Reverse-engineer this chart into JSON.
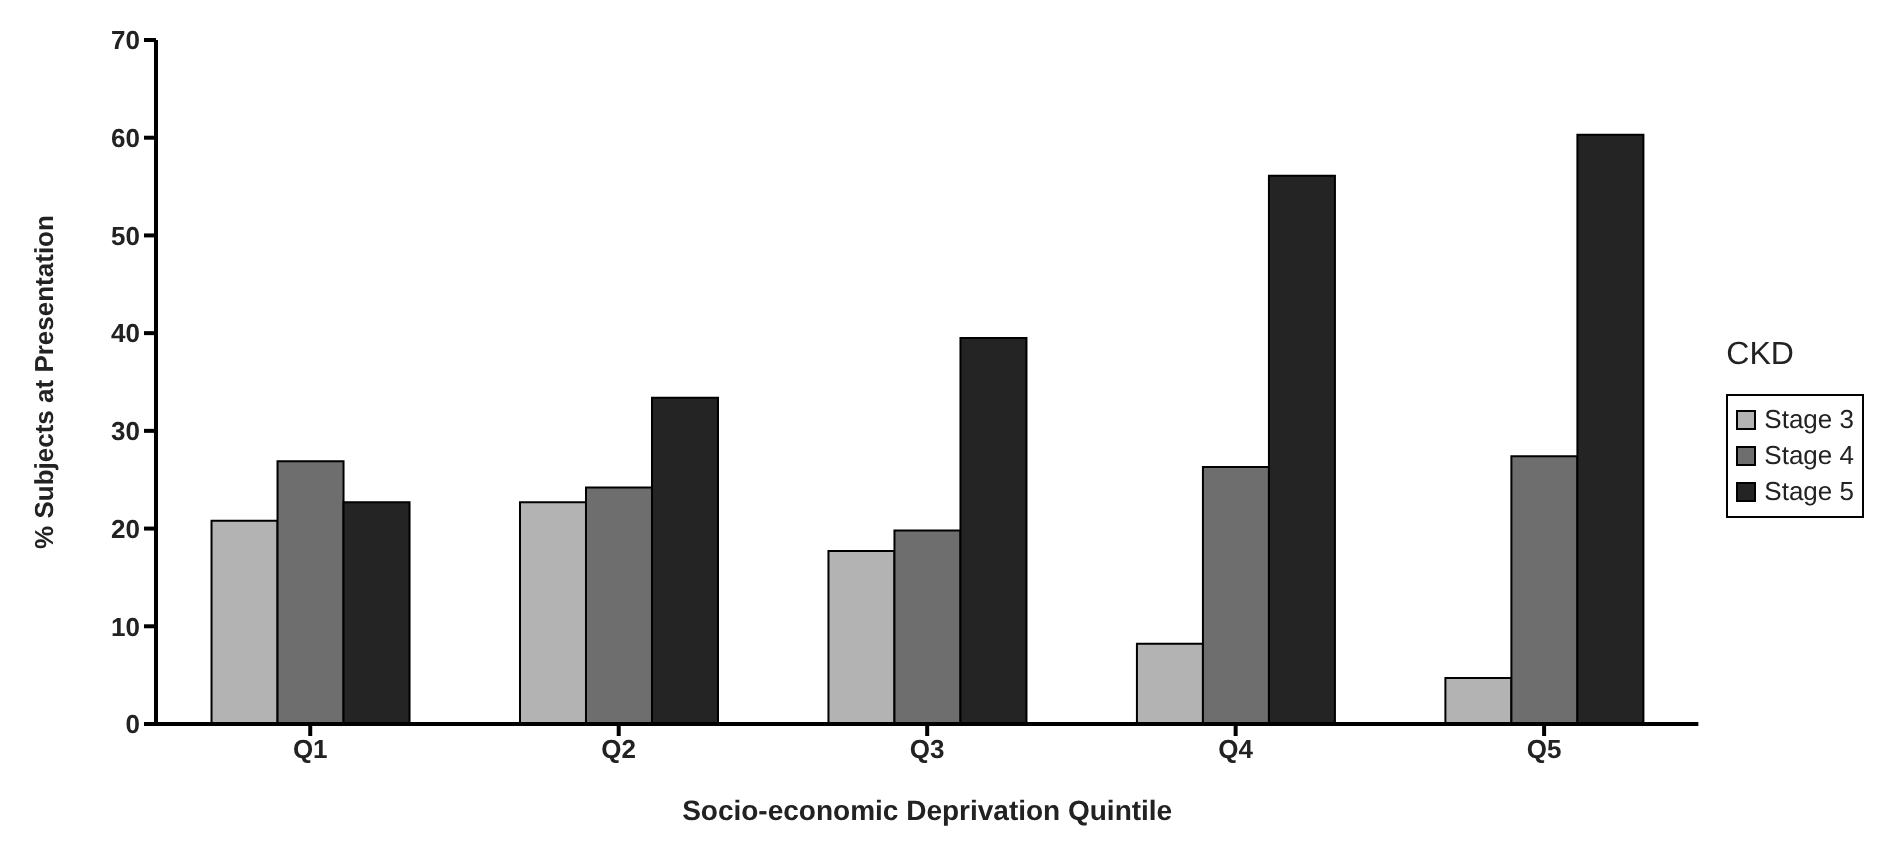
{
  "chart_data": {
    "type": "bar",
    "xlabel": "Socio-economic Deprivation Quintile",
    "ylabel": "% Subjects at Presentation",
    "legend_title": "CKD",
    "categories": [
      "Q1",
      "Q2",
      "Q3",
      "Q4",
      "Q5"
    ],
    "series": [
      {
        "name": "Stage 3",
        "color": "#b3b3b3",
        "values": [
          20.8,
          22.7,
          17.7,
          8.2,
          4.7
        ]
      },
      {
        "name": "Stage 4",
        "color": "#6e6e6e",
        "values": [
          26.9,
          24.2,
          19.8,
          26.3,
          27.4
        ]
      },
      {
        "name": "Stage 5",
        "color": "#242424",
        "values": [
          22.7,
          33.4,
          39.5,
          56.1,
          60.3
        ]
      }
    ],
    "ylim": [
      0,
      70
    ],
    "yticks": [
      0,
      10,
      20,
      30,
      40,
      50,
      60,
      70
    ],
    "grid": false,
    "legend": "right"
  }
}
